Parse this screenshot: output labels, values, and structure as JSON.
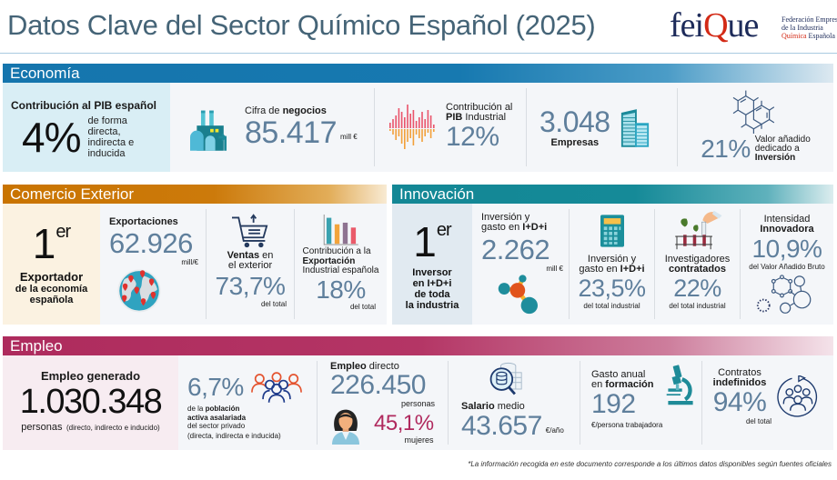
{
  "header": {
    "title": "Datos Clave del Sector Químico Español (2025)",
    "logo": {
      "word_a": "fei",
      "word_q": "Q",
      "word_b": "ue",
      "line1": "Federación Empresarial",
      "line2": "de la Industria",
      "line3_red": "Química",
      "line3": "Española"
    }
  },
  "colors": {
    "title": "#456477",
    "economia": "#1575ad",
    "comercio": "#c97400",
    "innovacion": "#138795",
    "empleo": "#ae2b5d",
    "value": "#5f7f9c",
    "accent_red": "#d32a16"
  },
  "economia": {
    "label": "Economía",
    "pib": {
      "title": "Contribución al PIB español",
      "value": "4%",
      "desc1": "de forma",
      "desc2": "directa,",
      "desc3": "indirecta e",
      "desc4": "inducida"
    },
    "cifra": {
      "label_a": "Cifra de ",
      "label_b": "negocios",
      "value": "85.417",
      "unit": "mill €",
      "icon": "factory-icon"
    },
    "pib_ind": {
      "label_a": "Contribución al",
      "label_b": "PIB",
      "label_c": " Industrial",
      "value": "12%",
      "icon": "sound-wave-icon"
    },
    "empresas": {
      "value": "3.048",
      "label": "Empresas",
      "icon": "buildings-icon"
    },
    "valor": {
      "value": "21%",
      "label1": "Valor añadido",
      "label2": "dedicado a",
      "label3": "Inversión",
      "icon": "molecule-structure-icon"
    }
  },
  "comercio": {
    "label": "Comercio Exterior",
    "rank": {
      "number": "1",
      "suffix": "er",
      "line1": "Exportador",
      "line2": "de la economía",
      "line3": "española"
    },
    "exportaciones": {
      "label": "Exportaciones",
      "value": "62.926",
      "unit": "mill/€",
      "icon": "globe-pins-icon"
    },
    "ventas": {
      "label_a": "Ventas",
      "label_b": " en",
      "label_c": "el exterior",
      "value": "73,7%",
      "sub": "del total",
      "icon": "cart-icon"
    },
    "contrib": {
      "label1": "Contribución a la",
      "label2": "Exportación",
      "label3": "Industrial española",
      "value": "18%",
      "sub": "del total",
      "icon": "bar-chart-icon"
    }
  },
  "innovacion": {
    "label": "Innovación",
    "rank": {
      "number": "1",
      "suffix": "er",
      "line1": "Inversor",
      "line2": "en I+D+i",
      "line3": "de toda",
      "line4": "la industria"
    },
    "gasto": {
      "label1": "Inversión y",
      "label2a": "gasto en ",
      "label2b": "I+D+i",
      "value": "2.262",
      "unit": "mill €",
      "icon": "molecule-icon"
    },
    "gasto_pct": {
      "label1": "Inversión y",
      "label2a": "gasto en ",
      "label2b": "I+D+i",
      "value": "23,5%",
      "sub": "del total industrial",
      "icon": "calculator-icon"
    },
    "investigadores": {
      "label1": "Investigadores",
      "label2": "contratados",
      "value": "22%",
      "sub": "del total industrial",
      "icon": "test-tubes-icon"
    },
    "intensidad": {
      "label1": "Intensidad",
      "label2": "Innovadora",
      "value": "10,9%",
      "sub": "del Valor Añadido Bruto",
      "icon": "network-icon"
    }
  },
  "empleo": {
    "label": "Empleo",
    "generado": {
      "title": "Empleo generado",
      "value": "1.030.348",
      "unit": "personas",
      "note": "(directo, indirecto e inducido)"
    },
    "poblacion": {
      "value": "6,7%",
      "l1a": "de la ",
      "l1b": "población",
      "l2": "activa asalariada",
      "l3": "del sector privado",
      "l4": "(directa, indirecta e inducida)",
      "icon": "people-group-icon"
    },
    "directo": {
      "label_a": "Empleo",
      "label_b": " directo",
      "value": "226.450",
      "unit": "personas",
      "women_value": "45,1%",
      "women_label": "mujeres",
      "icon": "woman-avatar-icon"
    },
    "salario": {
      "label_a": "Salario",
      "label_b": " medio",
      "value": "43.657",
      "unit": "€/año",
      "icon": "database-search-icon"
    },
    "formacion": {
      "label1": "Gasto anual",
      "label2a": "en ",
      "label2b": "formación",
      "value": "192",
      "sub": "€/persona trabajadora",
      "icon": "microscope-icon"
    },
    "contratos": {
      "label1": "Contratos",
      "label2": "indefinidos",
      "value": "94%",
      "sub": "del total",
      "icon": "people-cycle-icon"
    }
  },
  "footnote": "*La información recogida en este documento corresponde a los últimos datos disponibles según fuentes oficiales"
}
